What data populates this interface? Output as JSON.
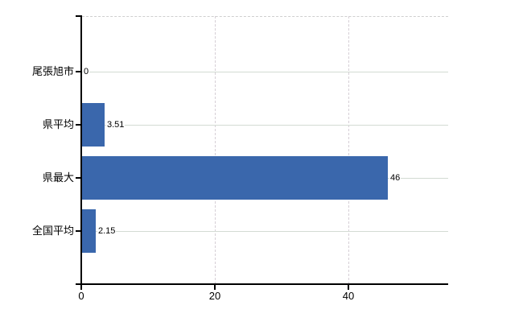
{
  "chart_data": {
    "type": "bar",
    "orientation": "horizontal",
    "title": "",
    "xlabel": "",
    "ylabel": "",
    "categories": [
      "尾張旭市",
      "県平均",
      "県最大",
      "全国平均"
    ],
    "values": [
      0,
      3.51,
      46,
      2.15
    ],
    "value_labels": [
      "0",
      "3.51",
      "46",
      "2.15"
    ],
    "xticks": [
      0,
      20,
      40
    ],
    "xtick_labels": [
      "0",
      "20",
      "40"
    ],
    "xlim": [
      0,
      55
    ],
    "grid": "on",
    "legend": "none",
    "bar_color": "#3a67ac",
    "axis_color": "#000000",
    "gridline_color_h": "#d3dbd3",
    "gridline_color_v": "#d6cfd6",
    "background_color": "#ffffff"
  }
}
